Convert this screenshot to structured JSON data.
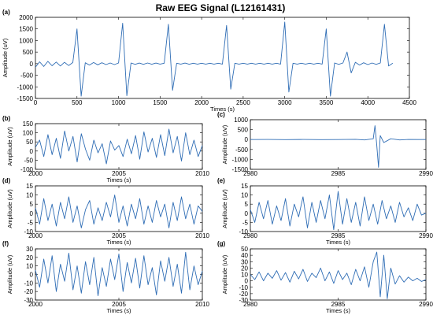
{
  "title": "Raw EEG Signal (L12161431)",
  "colors": {
    "signal": "#2f6db5",
    "axis": "#000000",
    "background": "#ffffff"
  },
  "chart_data": [
    {
      "label": "(a)",
      "type": "line",
      "xlabel": "Times (s)",
      "ylabel": "Amplitude (uV)",
      "xlim": [
        0,
        4500
      ],
      "ylim": [
        -1500,
        2000
      ],
      "xticks": [
        0,
        500,
        1000,
        1500,
        2000,
        2500,
        3000,
        3500,
        4000,
        4500
      ],
      "yticks": [
        -1500,
        -1000,
        -500,
        0,
        500,
        1000,
        1500,
        2000
      ],
      "series": [
        {
          "x": [
            0,
            50,
            100,
            150,
            200,
            250,
            300,
            350,
            400,
            450,
            500,
            550,
            600,
            650,
            700,
            750,
            800,
            850,
            900,
            950,
            1000,
            1050,
            1100,
            1150,
            1200,
            1250,
            1300,
            1350,
            1400,
            1450,
            1500,
            1550,
            1600,
            1650,
            1700,
            1750,
            1800,
            1850,
            1900,
            1950,
            2000,
            2050,
            2100,
            2150,
            2200,
            2250,
            2300,
            2350,
            2400,
            2450,
            2500,
            2550,
            2600,
            2650,
            2700,
            2750,
            2800,
            2850,
            2900,
            2950,
            3000,
            3050,
            3100,
            3150,
            3200,
            3250,
            3300,
            3350,
            3400,
            3450,
            3500,
            3550,
            3600,
            3650,
            3700,
            3750,
            3800,
            3850,
            3900,
            3950,
            4000,
            4050,
            4100,
            4150,
            4200,
            4250,
            4300
          ],
          "y": [
            -150,
            80,
            -120,
            100,
            -90,
            70,
            -100,
            60,
            -80,
            50,
            1500,
            -1400,
            40,
            -60,
            50,
            -50,
            40,
            -40,
            30,
            -40,
            30,
            1750,
            -1380,
            30,
            -30,
            25,
            -30,
            30,
            -25,
            25,
            -20,
            20,
            1700,
            -1150,
            20,
            -20,
            25,
            -25,
            20,
            -20,
            20,
            -20,
            20,
            -20,
            20,
            -20,
            1650,
            -1100,
            20,
            -20,
            20,
            -20,
            20,
            -20,
            20,
            -20,
            20,
            -20,
            20,
            -20,
            1800,
            -1220,
            20,
            -20,
            20,
            -20,
            20,
            -20,
            20,
            -20,
            1500,
            -1400,
            30,
            -30,
            30,
            500,
            -400,
            60,
            -60,
            40,
            -40,
            30,
            -30,
            30,
            1700,
            -100,
            20
          ]
        }
      ]
    },
    {
      "label": "(b)",
      "type": "line",
      "xlabel": "Times (s)",
      "ylabel": "Amplitude (uV)",
      "xlim": [
        2000,
        2010
      ],
      "ylim": [
        -100,
        150
      ],
      "xticks": [
        2000,
        2005,
        2010
      ],
      "yticks": [
        -100,
        -50,
        0,
        50,
        100,
        150
      ],
      "series": [
        {
          "x": [
            2000,
            2000.25,
            2000.5,
            2000.75,
            2001,
            2001.25,
            2001.5,
            2001.75,
            2002,
            2002.25,
            2002.5,
            2002.75,
            2003,
            2003.25,
            2003.5,
            2003.75,
            2004,
            2004.25,
            2004.5,
            2004.75,
            2005,
            2005.25,
            2005.5,
            2005.75,
            2006,
            2006.25,
            2006.5,
            2006.75,
            2007,
            2007.25,
            2007.5,
            2007.75,
            2008,
            2008.25,
            2008.5,
            2008.75,
            2009,
            2009.25,
            2009.5,
            2009.75,
            2010
          ],
          "y": [
            20,
            60,
            -30,
            90,
            -20,
            70,
            -40,
            110,
            0,
            80,
            -60,
            95,
            10,
            -50,
            60,
            -10,
            40,
            -70,
            55,
            5,
            30,
            -30,
            65,
            -15,
            85,
            -45,
            105,
            -5,
            70,
            -35,
            90,
            -25,
            120,
            -10,
            80,
            -55,
            100,
            -20,
            60,
            -30,
            30
          ]
        }
      ]
    },
    {
      "label": "(c)",
      "type": "line",
      "xlabel": "",
      "ylabel": "Amplitude (uV)",
      "xlim": [
        2980,
        2990
      ],
      "ylim": [
        -1500,
        1000
      ],
      "xticks": [
        2980,
        2985,
        2990
      ],
      "yticks": [
        -1500,
        -1000,
        -500,
        0,
        500,
        1000
      ],
      "series": [
        {
          "x": [
            2980,
            2981,
            2982,
            2983,
            2984,
            2985,
            2986,
            2986.5,
            2987,
            2987.1,
            2987.2,
            2987.3,
            2987.4,
            2987.6,
            2988,
            2988.5,
            2989,
            2990
          ],
          "y": [
            0,
            5,
            -5,
            5,
            -5,
            0,
            10,
            -20,
            40,
            700,
            -300,
            -1400,
            200,
            -150,
            40,
            -20,
            5,
            0
          ]
        }
      ]
    },
    {
      "label": "(d)",
      "type": "line",
      "xlabel": "Times (s)",
      "ylabel": "Amplitude (uV)",
      "xlim": [
        2000,
        2010
      ],
      "ylim": [
        -10,
        15
      ],
      "xticks": [
        2000,
        2005,
        2010
      ],
      "yticks": [
        -10,
        -5,
        0,
        5,
        10,
        15
      ],
      "series": [
        {
          "x": [
            2000,
            2000.25,
            2000.5,
            2000.75,
            2001,
            2001.25,
            2001.5,
            2001.75,
            2002,
            2002.25,
            2002.5,
            2002.75,
            2003,
            2003.25,
            2003.5,
            2003.75,
            2004,
            2004.25,
            2004.5,
            2004.75,
            2005,
            2005.25,
            2005.5,
            2005.75,
            2006,
            2006.25,
            2006.5,
            2006.75,
            2007,
            2007.25,
            2007.5,
            2007.75,
            2008,
            2008.25,
            2008.5,
            2008.75,
            2009,
            2009.25,
            2009.5,
            2009.75,
            2010
          ],
          "y": [
            3,
            -6,
            8,
            -4,
            5,
            -7,
            6,
            -3,
            9,
            -5,
            4,
            -8,
            2,
            7,
            -6,
            3,
            -4,
            6,
            -2,
            10,
            -5,
            4,
            -7,
            5,
            -3,
            8,
            -6,
            4,
            -5,
            7,
            -2,
            5,
            -8,
            6,
            -4,
            9,
            -3,
            5,
            -6,
            4,
            1
          ]
        }
      ]
    },
    {
      "label": "(e)",
      "type": "line",
      "xlabel": "Times (s)",
      "ylabel": "Amplitude (uV)",
      "xlim": [
        2980,
        2990
      ],
      "ylim": [
        -10,
        15
      ],
      "xticks": [
        2980,
        2985,
        2990
      ],
      "yticks": [
        -10,
        -5,
        0,
        5,
        10,
        15
      ],
      "series": [
        {
          "x": [
            2980,
            2980.25,
            2980.5,
            2980.75,
            2981,
            2981.25,
            2981.5,
            2981.75,
            2982,
            2982.25,
            2982.5,
            2982.75,
            2983,
            2983.25,
            2983.5,
            2983.75,
            2984,
            2984.25,
            2984.5,
            2984.75,
            2985,
            2985.25,
            2985.5,
            2985.75,
            2986,
            2986.25,
            2986.5,
            2986.75,
            2987,
            2987.25,
            2987.5,
            2987.75,
            2988,
            2988.25,
            2988.5,
            2988.75,
            2989,
            2989.25,
            2989.5,
            2989.75,
            2990
          ],
          "y": [
            2,
            -5,
            6,
            -3,
            7,
            -6,
            4,
            -4,
            8,
            -7,
            5,
            -2,
            9,
            -8,
            6,
            -5,
            7,
            -3,
            10,
            -9,
            12,
            -6,
            8,
            -5,
            6,
            -7,
            9,
            -4,
            5,
            -6,
            7,
            -3,
            4,
            -5,
            6,
            -2,
            3,
            -4,
            5,
            -1,
            0
          ]
        }
      ]
    },
    {
      "label": "(f)",
      "type": "line",
      "xlabel": "Times (s)",
      "ylabel": "Amplitude (uV)",
      "xlim": [
        2000,
        2010
      ],
      "ylim": [
        -30,
        30
      ],
      "xticks": [
        2000,
        2005,
        2010
      ],
      "yticks": [
        -30,
        -20,
        -10,
        0,
        10,
        20,
        30
      ],
      "series": [
        {
          "x": [
            2000,
            2000.25,
            2000.5,
            2000.75,
            2001,
            2001.25,
            2001.5,
            2001.75,
            2002,
            2002.25,
            2002.5,
            2002.75,
            2003,
            2003.25,
            2003.5,
            2003.75,
            2004,
            2004.25,
            2004.5,
            2004.75,
            2005,
            2005.25,
            2005.5,
            2005.75,
            2006,
            2006.25,
            2006.5,
            2006.75,
            2007,
            2007.25,
            2007.5,
            2007.75,
            2008,
            2008.25,
            2008.5,
            2008.75,
            2009,
            2009.25,
            2009.5,
            2009.75,
            2010
          ],
          "y": [
            5,
            -15,
            18,
            -10,
            22,
            -20,
            12,
            -8,
            25,
            -18,
            10,
            -22,
            15,
            -12,
            20,
            -25,
            8,
            -14,
            18,
            -6,
            24,
            -20,
            14,
            -10,
            19,
            -16,
            22,
            -12,
            8,
            -24,
            16,
            -8,
            20,
            -14,
            12,
            -22,
            26,
            -18,
            10,
            -12,
            4
          ]
        }
      ]
    },
    {
      "label": "(g)",
      "type": "line",
      "xlabel": "Times (s)",
      "ylabel": "Amplitude (uV)",
      "xlim": [
        2980,
        2990
      ],
      "ylim": [
        -30,
        50
      ],
      "xticks": [
        2980,
        2985,
        2990
      ],
      "yticks": [
        -30,
        -20,
        -10,
        0,
        10,
        20,
        30,
        40,
        50
      ],
      "series": [
        {
          "x": [
            2980,
            2980.25,
            2980.5,
            2980.75,
            2981,
            2981.25,
            2981.5,
            2981.75,
            2982,
            2982.25,
            2982.5,
            2982.75,
            2983,
            2983.25,
            2983.5,
            2983.75,
            2984,
            2984.25,
            2984.5,
            2984.75,
            2985,
            2985.25,
            2985.5,
            2985.75,
            2986,
            2986.25,
            2986.5,
            2986.75,
            2987,
            2987.2,
            2987.4,
            2987.6,
            2987.8,
            2988,
            2988.25,
            2988.5,
            2988.75,
            2989,
            2989.25,
            2989.5,
            2989.75,
            2990
          ],
          "y": [
            10,
            2,
            14,
            0,
            12,
            4,
            16,
            1,
            13,
            -2,
            15,
            3,
            18,
            -1,
            12,
            5,
            20,
            0,
            14,
            -4,
            16,
            2,
            12,
            -6,
            18,
            0,
            22,
            -10,
            30,
            45,
            -25,
            40,
            -28,
            20,
            -5,
            8,
            -2,
            6,
            0,
            4,
            -1,
            2
          ]
        }
      ]
    }
  ]
}
